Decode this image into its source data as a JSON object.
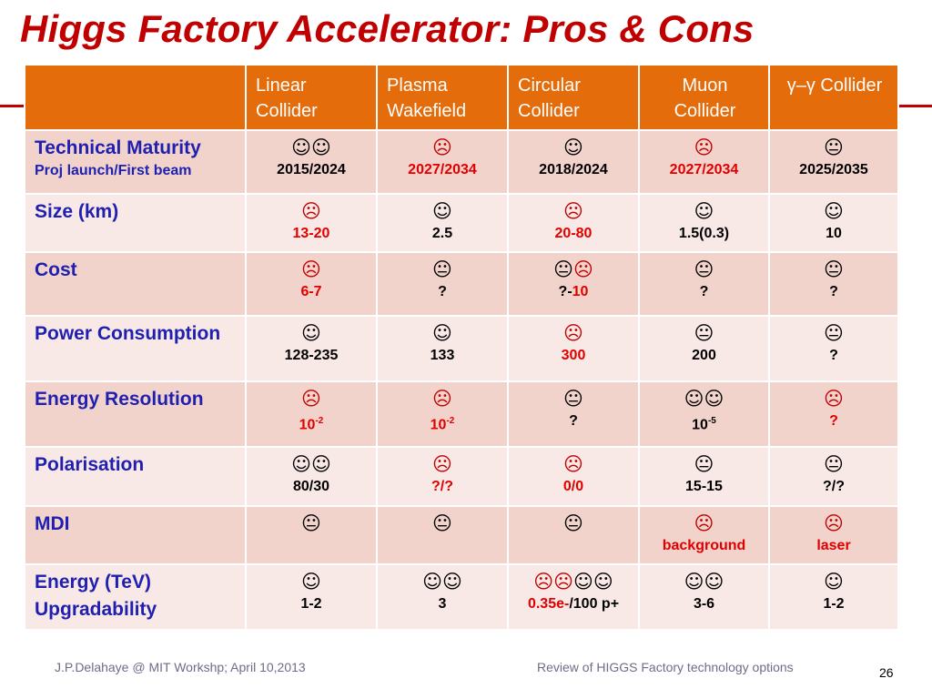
{
  "title": "Higgs Factory Accelerator: Pros & Cons",
  "colors": {
    "title": "#c00000",
    "header_bg": "#e46c0a",
    "row_dark": "#f2d3cc",
    "row_light": "#f9e9e6",
    "label": "#1f1fb0",
    "bad": "#e00000"
  },
  "header": {
    "blank": "",
    "c1": "Linear Collider",
    "c2": "Plasma Wakefield",
    "c3": "Circular Collider",
    "c4": "Muon Collider",
    "c5": "γ–γ Collider"
  },
  "rows": {
    "maturity": {
      "label": "Technical Maturity",
      "sub": "Proj launch/First beam",
      "c1": {
        "face": "☺☺",
        "val": "2015/2024"
      },
      "c2": {
        "face": "☹",
        "val": "2027/2034"
      },
      "c3": {
        "face": "☺",
        "val": "2018/2024"
      },
      "c4": {
        "face": "☹",
        "val": "2027/2034"
      },
      "c5": {
        "face": "😐",
        "val": "2025/2035"
      }
    },
    "size": {
      "label": "Size (km)",
      "c1": {
        "face": "☹",
        "val": "13-20"
      },
      "c2": {
        "face": "☺",
        "val": "2.5"
      },
      "c3": {
        "face": "☹",
        "val": "20-80"
      },
      "c4": {
        "face": "☺",
        "val": "1.5(0.3)"
      },
      "c5": {
        "face": "☺",
        "val": "10"
      }
    },
    "cost": {
      "label": "Cost",
      "c1": {
        "face": "☹",
        "val": "6-7"
      },
      "c2": {
        "face": "😐",
        "val": "?"
      },
      "c3": {
        "face_a": "😐",
        "face_b": "☹",
        "val_a": "?-",
        "val_b": "10"
      },
      "c4": {
        "face": "😐",
        "val": "?"
      },
      "c5": {
        "face": "😐",
        "val": "?"
      }
    },
    "power": {
      "label": "Power Consumption",
      "c1": {
        "face": "☺",
        "val": "128-235"
      },
      "c2": {
        "face": "☺",
        "val": "133"
      },
      "c3": {
        "face": "☹",
        "val": "300"
      },
      "c4": {
        "face": "😐",
        "val": "200"
      },
      "c5": {
        "face": "😐",
        "val": "?"
      }
    },
    "energy_res": {
      "label": "Energy Resolution",
      "c1": {
        "face": "☹",
        "base": "10",
        "exp": "-2"
      },
      "c2": {
        "face": "☹",
        "base": "10",
        "exp": "-2"
      },
      "c3": {
        "face": "😐",
        "val": "?"
      },
      "c4": {
        "face": "☺☺",
        "base": "10",
        "exp": "-5"
      },
      "c5": {
        "face": "☹",
        "val": "?"
      }
    },
    "polarisation": {
      "label": "Polarisation",
      "c1": {
        "face": "☺☺",
        "val": "80/30"
      },
      "c2": {
        "face": "☹",
        "val": "?/?"
      },
      "c3": {
        "face": "☹",
        "val": "0/0"
      },
      "c4": {
        "face": "😐",
        "val": "15-15"
      },
      "c5": {
        "face": "😐",
        "val": "?/?"
      }
    },
    "mdi": {
      "label": "MDI",
      "c1": {
        "face": "😐"
      },
      "c2": {
        "face": "😐"
      },
      "c3": {
        "face": "😐"
      },
      "c4": {
        "face": "☹",
        "val": "background"
      },
      "c5": {
        "face": "☹",
        "val": "laser"
      }
    },
    "upgrade": {
      "label": "Energy (TeV) Upgradability",
      "c1": {
        "face": "☺",
        "val": "1-2"
      },
      "c2": {
        "face": "☺☺",
        "val": "3"
      },
      "c3": {
        "face_a": "☹☹",
        "face_b": "☺☺",
        "val_a": "0.35e-",
        "val_b": "/100 p+"
      },
      "c4": {
        "face": "☺☺",
        "val": "3-6"
      },
      "c5": {
        "face": "☺",
        "val": "1-2"
      }
    }
  },
  "footer": {
    "left": "J.P.Delahaye @ MIT Workshp; April 10,2013",
    "right": "Review of HIGGS Factory technology options",
    "page": "26"
  }
}
